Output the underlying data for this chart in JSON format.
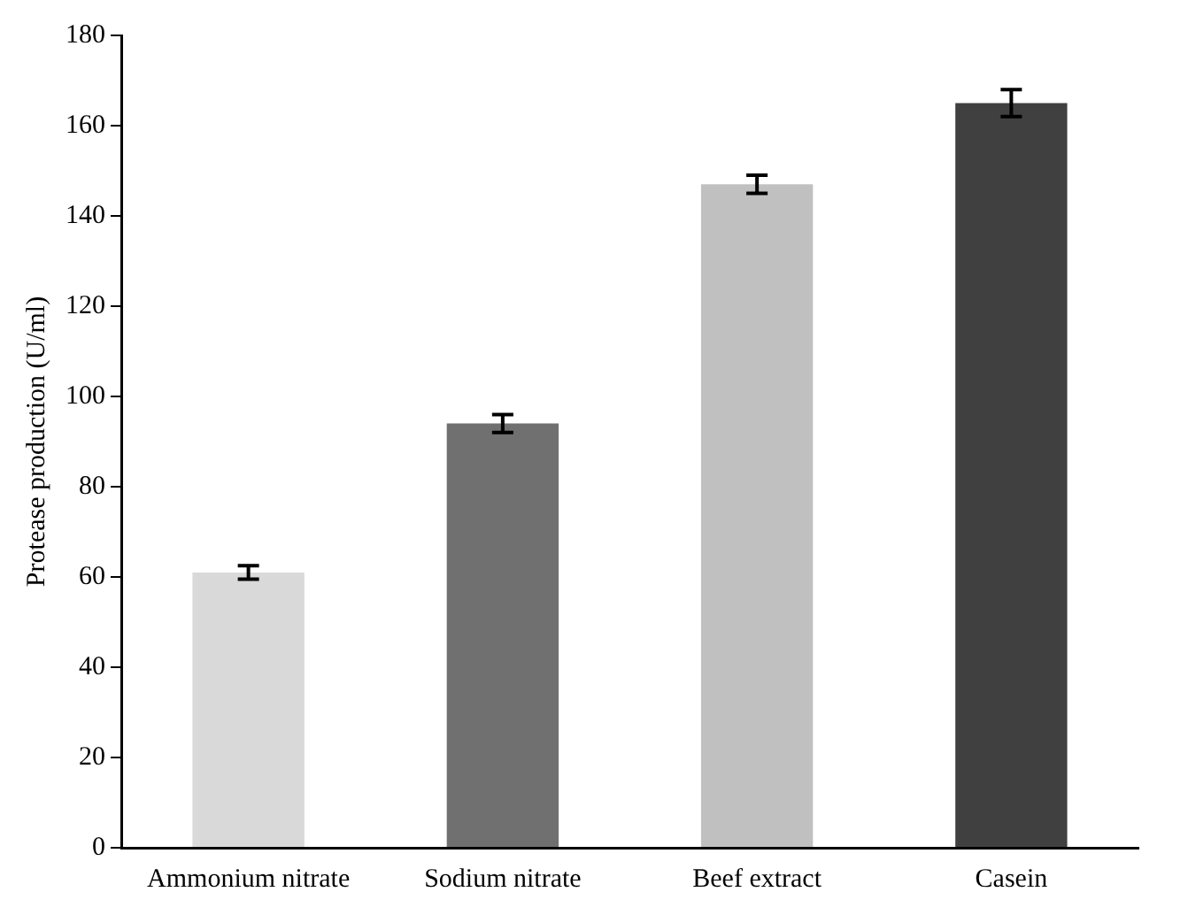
{
  "chart_data": {
    "type": "bar",
    "ylabel": "Protease production (U/ml)",
    "categories": [
      "Ammonium nitrate",
      "Sodium nitrate",
      "Beef extract",
      "Casein"
    ],
    "values": [
      61,
      94,
      147,
      165
    ],
    "errors": [
      1.5,
      2,
      2,
      3
    ],
    "colors": [
      "#d9d9d9",
      "#707070",
      "#c0c0c0",
      "#404040"
    ],
    "ylim": [
      0,
      180
    ],
    "yticks": [
      0,
      20,
      40,
      60,
      80,
      100,
      120,
      140,
      160,
      180
    ],
    "grid": false,
    "legend": false
  }
}
